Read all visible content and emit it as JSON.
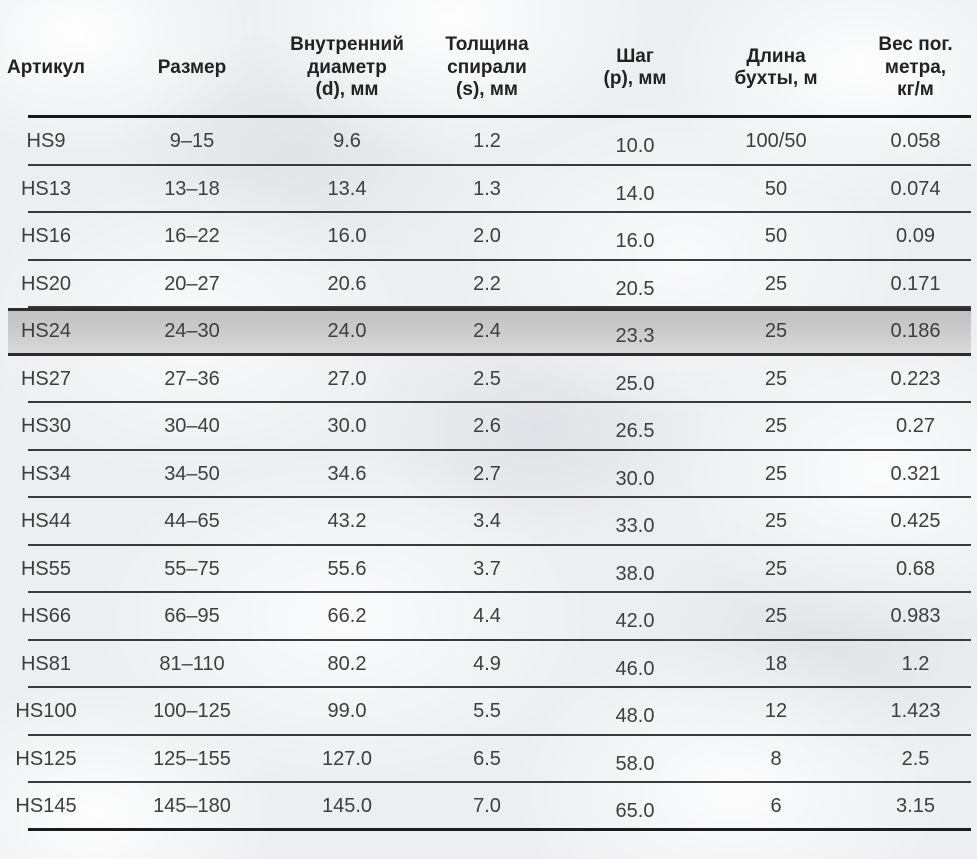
{
  "table": {
    "columns": [
      {
        "label": "Артикул"
      },
      {
        "label": "Размер"
      },
      {
        "label": "Внутренний\nдиаметр\n(d), мм"
      },
      {
        "label": "Толщина\nспирали\n(s), мм"
      },
      {
        "label": "Шаг\n(p), мм"
      },
      {
        "label": "Длина\nбухты, м"
      },
      {
        "label": "Вес пог.\nметра,\nкг/м"
      }
    ],
    "rows": [
      {
        "cells": [
          "HS9",
          "9–15",
          "9.6",
          "1.2",
          "10.0",
          "100/50",
          "0.058"
        ]
      },
      {
        "cells": [
          "HS13",
          "13–18",
          "13.4",
          "1.3",
          "14.0",
          "50",
          "0.074"
        ]
      },
      {
        "cells": [
          "HS16",
          "16–22",
          "16.0",
          "2.0",
          "16.0",
          "50",
          "0.09"
        ]
      },
      {
        "cells": [
          "HS20",
          "20–27",
          "20.6",
          "2.2",
          "20.5",
          "25",
          "0.171"
        ]
      },
      {
        "cells": [
          "HS24",
          "24–30",
          "24.0",
          "2.4",
          "23.3",
          "25",
          "0.186"
        ]
      },
      {
        "cells": [
          "HS27",
          "27–36",
          "27.0",
          "2.5",
          "25.0",
          "25",
          "0.223"
        ]
      },
      {
        "cells": [
          "HS30",
          "30–40",
          "30.0",
          "2.6",
          "26.5",
          "25",
          "0.27"
        ]
      },
      {
        "cells": [
          "HS34",
          "34–50",
          "34.6",
          "2.7",
          "30.0",
          "25",
          "0.321"
        ]
      },
      {
        "cells": [
          "HS44",
          "44–65",
          "43.2",
          "3.4",
          "33.0",
          "25",
          "0.425"
        ]
      },
      {
        "cells": [
          "HS55",
          "55–75",
          "55.6",
          "3.7",
          "38.0",
          "25",
          "0.68"
        ]
      },
      {
        "cells": [
          "HS66",
          "66–95",
          "66.2",
          "4.4",
          "42.0",
          "25",
          "0.983"
        ]
      },
      {
        "cells": [
          "HS81",
          "81–110",
          "80.2",
          "4.9",
          "46.0",
          "18",
          "1.2"
        ]
      },
      {
        "cells": [
          "HS100",
          "100–125",
          "99.0",
          "5.5",
          "48.0",
          "12",
          "1.423"
        ]
      },
      {
        "cells": [
          "HS125",
          "125–155",
          "127.0",
          "6.5",
          "58.0",
          "8",
          "2.5"
        ]
      },
      {
        "cells": [
          "HS145",
          "145–180",
          "145.0",
          "7.0",
          "65.0",
          "6",
          "3.15"
        ]
      }
    ],
    "highlighted_row_index": 4,
    "colors": {
      "row_separator": "#3a3a3a",
      "header_rule": "#161616",
      "highlight_background_top": "#c1c1c1",
      "highlight_background_bottom": "#dadada",
      "text": "#3e3e3e",
      "page_background": "#eceef1"
    }
  }
}
